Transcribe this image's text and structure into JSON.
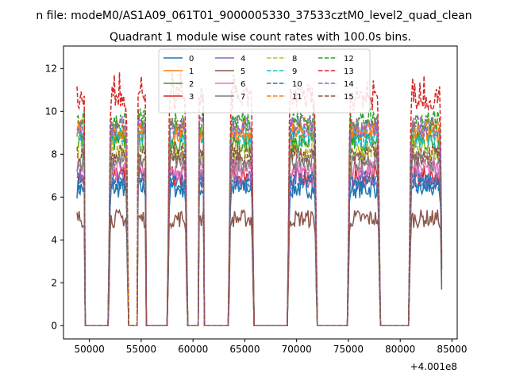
{
  "figure": {
    "suptitle": "n file: modeM0/AS1A09_061T01_9000005330_37533cztM0_level2_quad_clean",
    "offset_label": "+4.001e8"
  },
  "chart_data": {
    "type": "line",
    "title": "Quadrant 1 module wise count rates with 100.0s bins.",
    "xlabel": "",
    "ylabel": "",
    "x_offset": 400100000,
    "xlim": [
      47500,
      85500
    ],
    "ylim": [
      -0.62,
      13.05
    ],
    "x_ticks": [
      50000,
      55000,
      60000,
      65000,
      70000,
      75000,
      80000,
      85000
    ],
    "x_tick_labels": [
      "50000",
      "55000",
      "60000",
      "65000",
      "70000",
      "75000",
      "80000",
      "85000"
    ],
    "y_ticks": [
      0,
      2,
      4,
      6,
      8,
      10,
      12
    ],
    "y_tick_labels": [
      "0",
      "2",
      "4",
      "6",
      "8",
      "10",
      "12"
    ],
    "grid": false,
    "legend": {
      "placement": "top-center",
      "columns": 4
    },
    "bin_size_s": 100,
    "active_segments": [
      [
        48800,
        49500
      ],
      [
        51900,
        53700
      ],
      [
        54700,
        55400
      ],
      [
        57600,
        59400
      ],
      [
        60600,
        61000
      ],
      [
        63500,
        65800
      ],
      [
        69200,
        71900
      ],
      [
        75000,
        78000
      ],
      [
        80900,
        84000
      ]
    ],
    "series": [
      {
        "name": "0",
        "color": "#1f77b4",
        "dashed": false,
        "level": 6.4
      },
      {
        "name": "1",
        "color": "#ff7f0e",
        "dashed": false,
        "level": 9.0
      },
      {
        "name": "2",
        "color": "#2ca02c",
        "dashed": false,
        "level": 8.6
      },
      {
        "name": "3",
        "color": "#d62728",
        "dashed": false,
        "level": 7.0
      },
      {
        "name": "4",
        "color": "#9467bd",
        "dashed": false,
        "level": 6.9
      },
      {
        "name": "5",
        "color": "#8c564b",
        "dashed": false,
        "level": 5.0
      },
      {
        "name": "6",
        "color": "#e377c2",
        "dashed": false,
        "level": 7.3
      },
      {
        "name": "7",
        "color": "#7f7f7f",
        "dashed": false,
        "level": 7.7
      },
      {
        "name": "8",
        "color": "#bcbd22",
        "dashed": true,
        "level": 8.2
      },
      {
        "name": "9",
        "color": "#17becf",
        "dashed": true,
        "level": 8.8
      },
      {
        "name": "10",
        "color": "#1f77b4",
        "dashed": true,
        "level": 6.7
      },
      {
        "name": "11",
        "color": "#ff7f0e",
        "dashed": true,
        "level": 9.2
      },
      {
        "name": "12",
        "color": "#2ca02c",
        "dashed": true,
        "level": 9.6
      },
      {
        "name": "13",
        "color": "#d62728",
        "dashed": true,
        "level": 10.6
      },
      {
        "name": "14",
        "color": "#9467bd",
        "dashed": true,
        "level": 9.3
      },
      {
        "name": "15",
        "color": "#8c564b",
        "dashed": true,
        "level": 8.0
      }
    ]
  }
}
